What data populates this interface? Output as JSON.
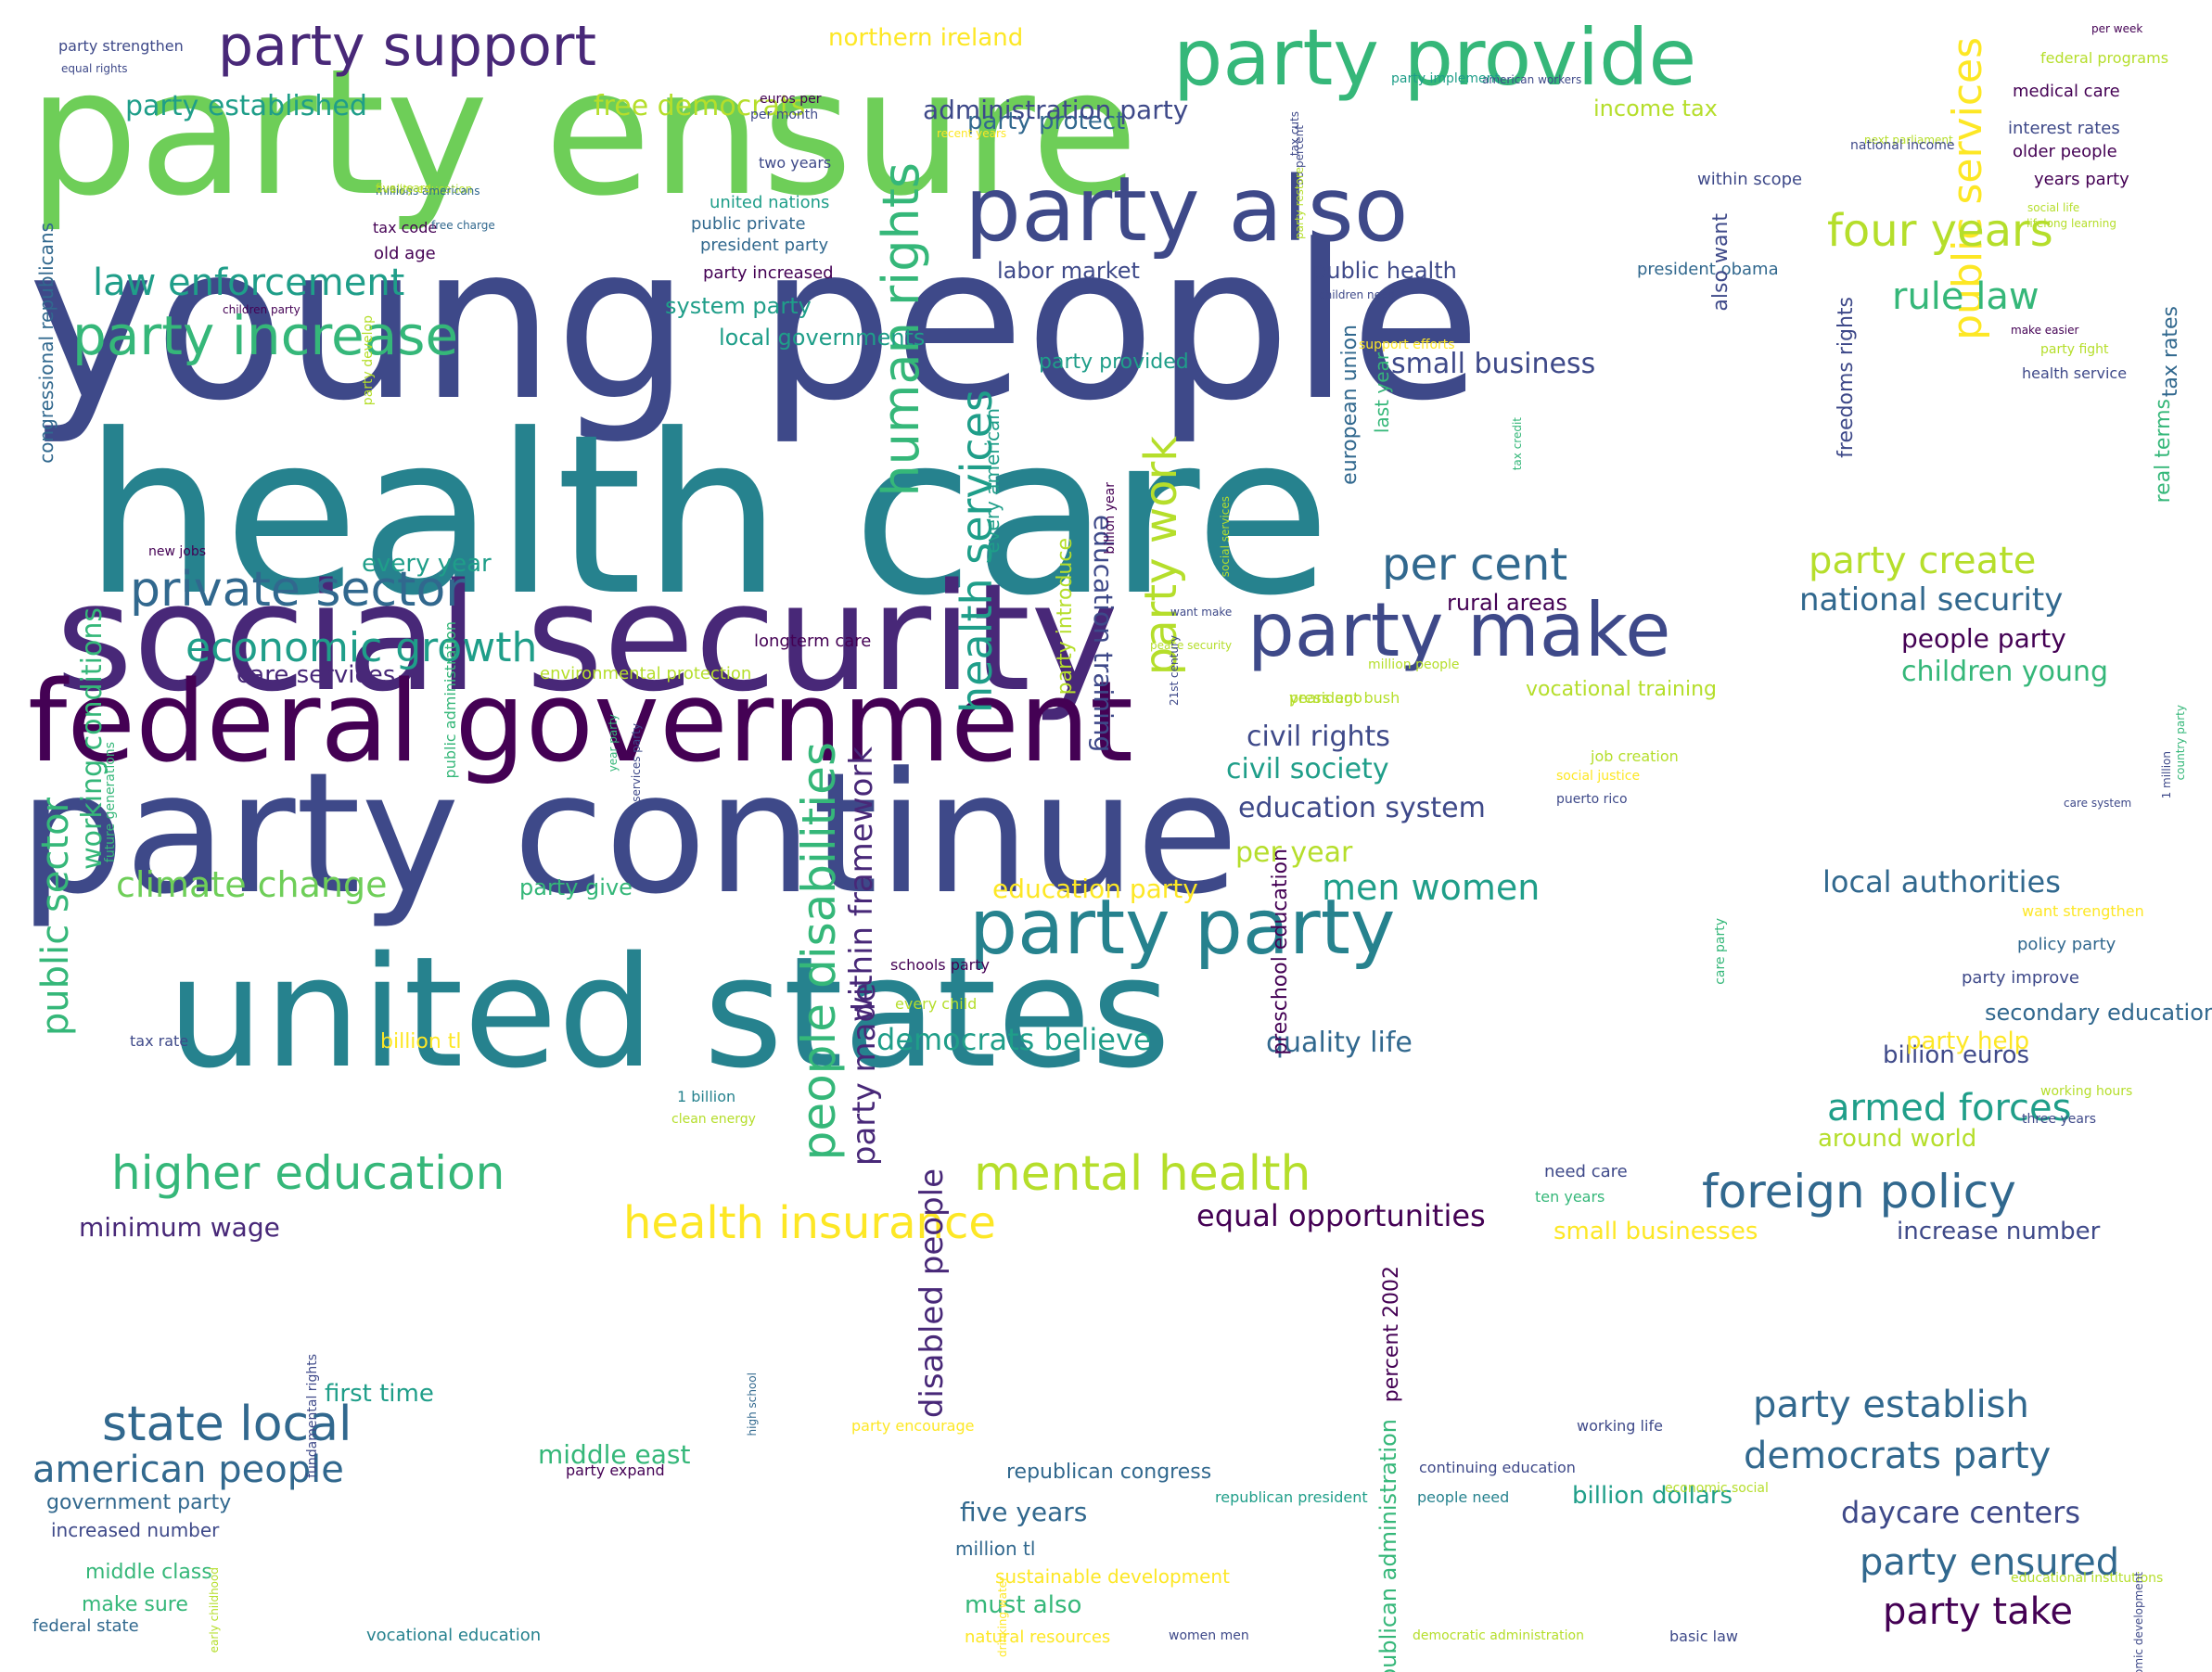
{
  "palette": {
    "background": "#ffffff",
    "dark-purple": "#440154",
    "purple": "#482878",
    "indigo": "#3e4989",
    "blue": "#31688e",
    "teal-blue": "#26828e",
    "teal": "#1f9e89",
    "green": "#35b779",
    "light-green": "#6ece58",
    "lime": "#b5de2b",
    "yellow": "#fde725"
  },
  "words": [
    "young people",
    "health care",
    "party ensure",
    "social security",
    "party continue",
    "united states",
    "federal government",
    "party provide",
    "party also",
    "party make",
    "party party",
    "party support",
    "party increase",
    "private sector",
    "higher education",
    "mental health",
    "economic growth",
    "foreign policy",
    "health insurance",
    "law enforcement",
    "american people",
    "state local",
    "human rights",
    "people disabilities",
    "public services",
    "party work",
    "health services",
    "rule law",
    "four years",
    "per cent",
    "party create",
    "national security",
    "democrats party",
    "party establish",
    "armed forces",
    "climate change",
    "men women",
    "party established",
    "free democrats",
    "northern ireland",
    "party made",
    "party protect",
    "administration party",
    "income tax",
    "civil rights",
    "civil society",
    "per year",
    "education system",
    "education party",
    "local authorities",
    "democrats believe",
    "quality life",
    "equal opportunities",
    "minimum wage",
    "middle east",
    "first time",
    "five years",
    "must also",
    "party take",
    "party ensured",
    "daycare centers",
    "billion dollars",
    "increase number",
    "small businesses",
    "small business",
    "people party",
    "children young",
    "rural areas",
    "every year",
    "care services",
    "labor market",
    "public health",
    "local governments",
    "system party",
    "party provided",
    "around world",
    "billion euros",
    "party help",
    "secondary education",
    "party improve",
    "policy party",
    "within framework",
    "disabled people",
    "public sector",
    "working conditions",
    "want strengthen",
    "make sure",
    "middle class",
    "increased number",
    "government party",
    "federal state",
    "vocational education",
    "natural resources",
    "billion tl",
    "vocational training",
    "years ago",
    "president bush",
    "education training",
    "party introduce",
    "european union",
    "freedoms rights",
    "medical care",
    "interest rates",
    "older people",
    "years party",
    "within scope",
    "federal programs",
    "real terms",
    "tax rates",
    "last year",
    "two years",
    "united nations",
    "public private",
    "president party",
    "party increased",
    "president obama",
    "old age",
    "tax code",
    "per week",
    "american workers",
    "party implement",
    "recent years",
    "quality education",
    "free charge",
    "new jobs",
    "millions americans",
    "five years",
    "children party",
    "tax rate",
    "national income",
    "1 billion",
    "clean energy",
    "50 percent",
    "percent 2002",
    "schools party",
    "every child",
    "party give",
    "every american",
    "drinking water",
    "country party",
    "working hours",
    "three years",
    "need care",
    "ten years",
    "party restore",
    "preschool education",
    "also want",
    "party encourage",
    "party expand",
    "republican congress",
    "million tl",
    "sustainable development",
    "early childhood",
    "high school",
    "economic development",
    "continuing education",
    "working life",
    "people need",
    "republican president",
    "educational institutions",
    "basic law",
    "democratic administration",
    "women men",
    "economic social",
    "job creation",
    "social justice",
    "puerto rico",
    "21st century",
    "million people",
    "longterm care",
    "environmental protection",
    "want make",
    "peace security",
    "care system",
    "party fight",
    "support efforts",
    "children need",
    "make easier",
    "health service",
    "lifelong learning",
    "social life",
    "next parliament",
    "tax cuts",
    "per month",
    "euros per",
    "equal rights",
    "party strengthen",
    "congressional republicans",
    "public administration",
    "future generations",
    "party develop",
    "fundamental rights",
    "republican administration",
    "billion year",
    "social services",
    "tax credit",
    "care party",
    "1 million",
    "year party",
    "services party"
  ]
}
